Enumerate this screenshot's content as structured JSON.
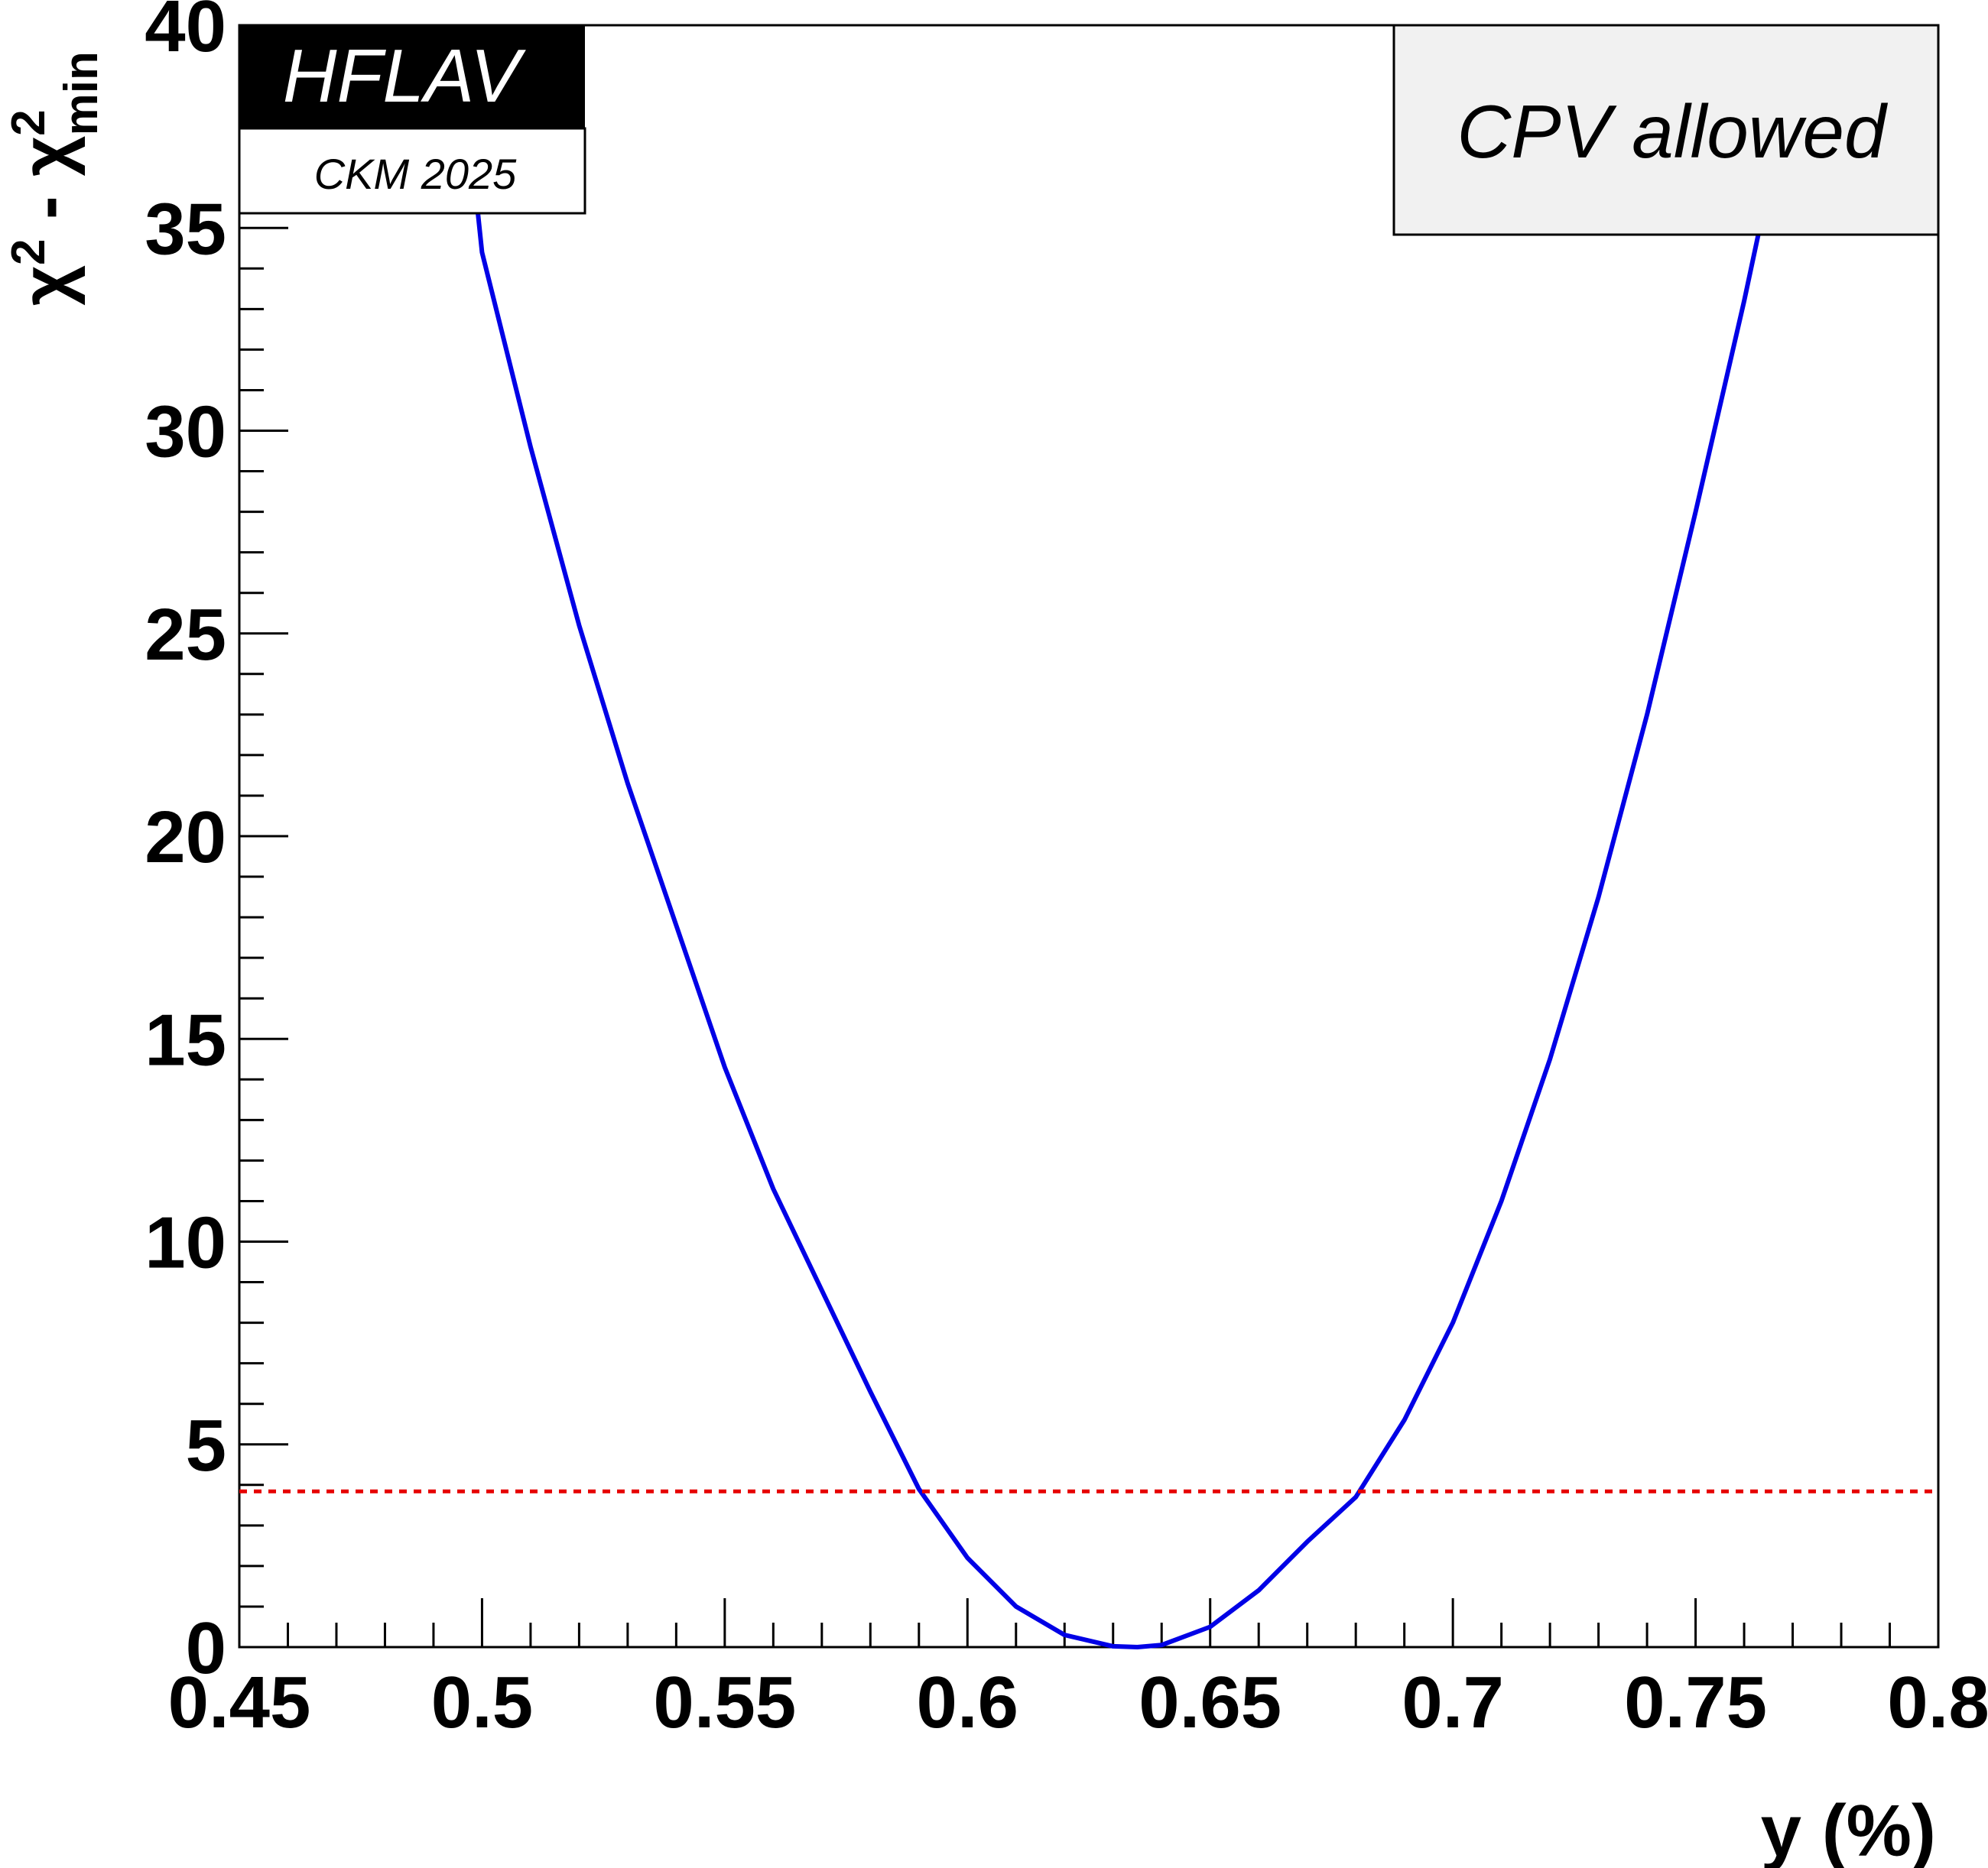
{
  "chart_data": {
    "type": "line",
    "title": "",
    "xlabel": "y (%)",
    "ylabel": {
      "main": "χ",
      "sup1": "2",
      "dash": " - ",
      "main2": "χ",
      "sup2": "2",
      "sub2": "min"
    },
    "xlim": [
      0.45,
      0.8
    ],
    "ylim": [
      0,
      40
    ],
    "x_ticks": [
      {
        "value": 0.45,
        "label": "0.45"
      },
      {
        "value": 0.5,
        "label": "0.5"
      },
      {
        "value": 0.55,
        "label": "0.55"
      },
      {
        "value": 0.6,
        "label": "0.6"
      },
      {
        "value": 0.65,
        "label": "0.65"
      },
      {
        "value": 0.7,
        "label": "0.7"
      },
      {
        "value": 0.75,
        "label": "0.75"
      },
      {
        "value": 0.8,
        "label": "0.8"
      }
    ],
    "y_ticks": [
      {
        "value": 0,
        "label": "0"
      },
      {
        "value": 5,
        "label": "5"
      },
      {
        "value": 10,
        "label": "10"
      },
      {
        "value": 15,
        "label": "15"
      },
      {
        "value": 20,
        "label": "20"
      },
      {
        "value": 25,
        "label": "25"
      },
      {
        "value": 30,
        "label": "30"
      },
      {
        "value": 35,
        "label": "35"
      },
      {
        "value": 40,
        "label": "40"
      }
    ],
    "x_minor_step": 0.01,
    "y_minor_step": 1,
    "grid": false,
    "legend": null,
    "series": [
      {
        "color": "#0000e6",
        "style": "solid",
        "points": [
          [
            0.4986,
            36.0
          ],
          [
            0.5,
            34.4
          ],
          [
            0.51,
            29.6
          ],
          [
            0.52,
            25.2
          ],
          [
            0.53,
            21.3
          ],
          [
            0.54,
            17.8
          ],
          [
            0.55,
            14.3
          ],
          [
            0.56,
            11.3
          ],
          [
            0.57,
            8.8
          ],
          [
            0.58,
            6.3
          ],
          [
            0.59,
            3.9
          ],
          [
            0.6,
            2.2
          ],
          [
            0.61,
            1.0
          ],
          [
            0.62,
            0.3
          ],
          [
            0.63,
            0.02
          ],
          [
            0.635,
            0.0
          ],
          [
            0.64,
            0.05
          ],
          [
            0.65,
            0.5
          ],
          [
            0.66,
            1.4
          ],
          [
            0.67,
            2.6
          ],
          [
            0.68,
            3.7
          ],
          [
            0.69,
            5.6
          ],
          [
            0.7,
            8.0
          ],
          [
            0.71,
            11.0
          ],
          [
            0.72,
            14.5
          ],
          [
            0.73,
            18.5
          ],
          [
            0.74,
            23.0
          ],
          [
            0.75,
            28.0
          ],
          [
            0.76,
            33.2
          ],
          [
            0.7721,
            40.0
          ]
        ]
      },
      {
        "color": "#e60000",
        "style": "dotted",
        "points": [
          [
            0.45,
            3.84
          ],
          [
            0.8,
            3.84
          ]
        ]
      }
    ],
    "annotations": {
      "logo_top": "HFLAV",
      "logo_bottom": "CKM 2025",
      "box_text": "CPV allowed"
    }
  }
}
